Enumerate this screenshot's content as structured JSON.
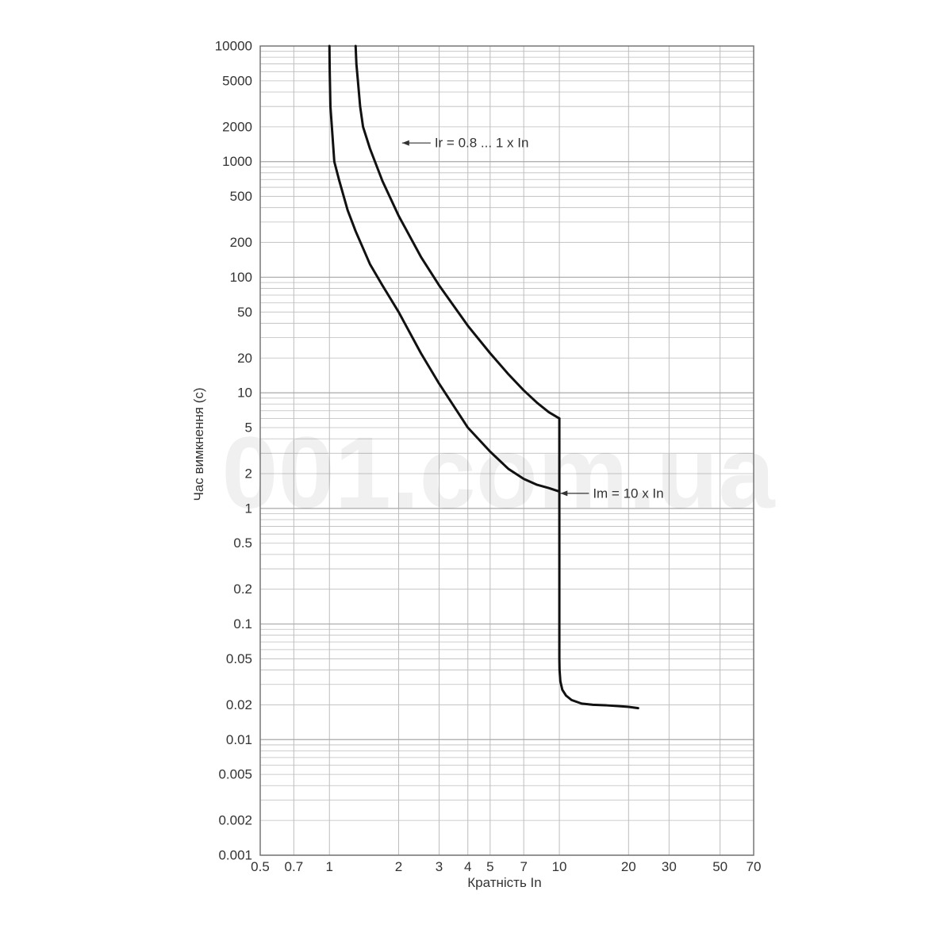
{
  "watermark": "001.com.ua",
  "chart_data": {
    "type": "line",
    "title": "",
    "xlabel": "Кратність In",
    "ylabel": "Час вимкнення (с)",
    "x_scale": "log",
    "y_scale": "log",
    "xlim": [
      0.5,
      70
    ],
    "ylim": [
      0.001,
      10000
    ],
    "grid": true,
    "x_ticks": [
      0.5,
      0.7,
      1,
      2,
      3,
      4,
      5,
      7,
      10,
      20,
      30,
      50,
      70
    ],
    "x_tick_labels": [
      "0.5",
      "0.7",
      "1",
      "2",
      "3",
      "4",
      "5",
      "7",
      "10",
      "20",
      "30",
      "50",
      "70"
    ],
    "y_ticks": [
      10000,
      5000,
      2000,
      1000,
      500,
      200,
      100,
      50,
      20,
      10,
      5,
      2,
      1,
      0.5,
      0.2,
      0.1,
      0.05,
      0.02,
      0.01,
      0.005,
      0.002,
      0.001
    ],
    "y_tick_labels": [
      "10000",
      "5000",
      "2000",
      "1000",
      "500",
      "200",
      "100",
      "50",
      "20",
      "10",
      "5",
      "2",
      "1",
      "0.5",
      "0.2",
      "0.1",
      "0.05",
      "0.02",
      "0.01",
      "0.005",
      "0.002",
      "0.001"
    ],
    "colors": {
      "curve": "#111111",
      "grid": "#bdbdbd",
      "frame": "#777777"
    },
    "series": [
      {
        "x": [
          1.0,
          1.003,
          1.01,
          1.05,
          1.1,
          1.2,
          1.3,
          1.5,
          1.7,
          2.0,
          2.5,
          3.0,
          4.0,
          5.0,
          6.0,
          7.0,
          8.0,
          9.0,
          10.0
        ],
        "y": [
          10000,
          6000,
          3000,
          1000,
          700,
          380,
          250,
          130,
          85,
          50,
          22,
          12,
          5.0,
          3.1,
          2.2,
          1.8,
          1.6,
          1.5,
          1.4
        ]
      },
      {
        "x": [
          1.3,
          1.31,
          1.33,
          1.36,
          1.4,
          1.5,
          1.7,
          2.0,
          2.5,
          3.0,
          4.0,
          5.0,
          6.0,
          7.0,
          8.0,
          9.0,
          10.0
        ],
        "y": [
          10000,
          7000,
          5000,
          3000,
          2000,
          1300,
          680,
          340,
          150,
          85,
          38,
          22,
          14.5,
          10.5,
          8.2,
          6.8,
          6.0
        ]
      },
      {
        "x": [
          10.0,
          10.0,
          10.0,
          10.0,
          10.02,
          10.1,
          10.3,
          10.7,
          11.3,
          12.5,
          14.0,
          16.0,
          18.0,
          20.0,
          22.0
        ],
        "y": [
          6.0,
          1.4,
          0.2,
          0.05,
          0.04,
          0.032,
          0.027,
          0.024,
          0.022,
          0.0205,
          0.02,
          0.0198,
          0.0195,
          0.0192,
          0.0187
        ]
      }
    ],
    "annotations": [
      {
        "text": "Ir = 0.8 ... 1 x In",
        "x": 2.07,
        "y": 1450
      },
      {
        "text": "Im = 10 x In",
        "x": 10.1,
        "y": 1.35
      }
    ]
  }
}
